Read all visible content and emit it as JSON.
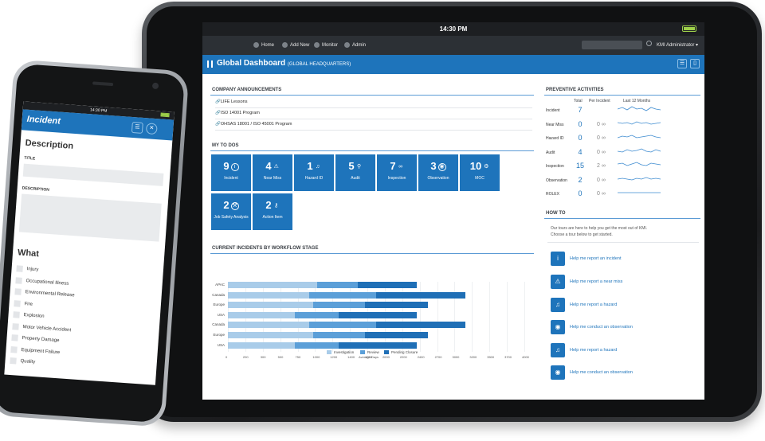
{
  "tablet": {
    "time": "14:30 PM",
    "nav": {
      "home": "Home",
      "add_new": "Add New",
      "monitor": "Monitor",
      "admin": "Admin",
      "user": "KMI Administrator ▾"
    },
    "title": "Global Dashboard",
    "subtitle": "(GLOBAL HEADQUARTERS)",
    "announcements": {
      "heading": "COMPANY ANNOUNCEMENTS",
      "items": [
        "LIFE Lessons",
        "ISO 14001 Program",
        "OHSAS 18001 / ISO 45001 Program"
      ]
    },
    "todos": {
      "heading": "MY TO DOS",
      "tiles": [
        {
          "count": "9",
          "label": "Incident",
          "icon": "info-icon"
        },
        {
          "count": "4",
          "label": "Near Miss",
          "icon": "warning-icon"
        },
        {
          "count": "1",
          "label": "Hazard ID",
          "icon": "bell-icon"
        },
        {
          "count": "5",
          "label": "Audit",
          "icon": "magnify-icon"
        },
        {
          "count": "7",
          "label": "Inspection",
          "icon": "glasses-icon"
        },
        {
          "count": "3",
          "label": "Observation",
          "icon": "eye-icon"
        },
        {
          "count": "10",
          "label": "MOC",
          "icon": "gear-icon"
        },
        {
          "count": "2",
          "label": "Job Safety Analysis",
          "icon": "tool-icon"
        },
        {
          "count": "2",
          "label": "Action Item",
          "icon": "wrench-icon"
        }
      ]
    },
    "workflow": {
      "heading": "CURRENT INCIDENTS BY WORKFLOW STAGE",
      "xlabel": "Average Days",
      "legend": [
        "Investigation",
        "Review",
        "Pending Closure"
      ]
    },
    "preventive": {
      "heading": "PREVENTIVE ACTIVITIES",
      "col_total": "Total",
      "col_per": "Per Incident",
      "col_trend": "Last 12 Months",
      "rows": [
        {
          "label": "Incident",
          "total": "7",
          "per": ""
        },
        {
          "label": "Near Miss",
          "total": "0",
          "per": "0 ∞"
        },
        {
          "label": "Hazard ID",
          "total": "0",
          "per": "0 ∞"
        },
        {
          "label": "Audit",
          "total": "4",
          "per": "0 ∞"
        },
        {
          "label": "Inspection",
          "total": "15",
          "per": "2 ∞"
        },
        {
          "label": "Observation",
          "total": "2",
          "per": "0 ∞"
        },
        {
          "label": "ROLEX",
          "total": "0",
          "per": "0 ∞"
        }
      ]
    },
    "howto": {
      "heading": "HOW TO",
      "intro1": "Our tours are here to help you get the most out of KMI.",
      "intro2": "Choose a tour below to get started.",
      "items": [
        "Help me report an incident",
        "Help me report a near miss",
        "Help me report a hazard",
        "Help me conduct an observation",
        "Help me report a hazard",
        "Help me conduct an observation"
      ]
    }
  },
  "chart_data": {
    "type": "bar",
    "stacked": true,
    "orientation": "horizontal",
    "categories": [
      "APAC",
      "Canada",
      "Europe",
      "USA",
      "Canada",
      "Europe",
      "USA"
    ],
    "series": [
      {
        "name": "Investigation",
        "values": [
          1200,
          1100,
          1150,
          900,
          1100,
          1150,
          900
        ]
      },
      {
        "name": "Review",
        "values": [
          550,
          900,
          700,
          600,
          900,
          700,
          600
        ]
      },
      {
        "name": "Pending Closure",
        "values": [
          800,
          1200,
          850,
          1050,
          1200,
          850,
          1050
        ]
      }
    ],
    "xlabel": "Average Days",
    "xlim": [
      0,
      4000
    ],
    "xticks": [
      "0",
      "200",
      "300",
      "500",
      "750",
      "1000",
      "1200",
      "1400",
      "1700",
      "2000",
      "2200",
      "2400",
      "2700",
      "3000",
      "3200",
      "3500",
      "3700",
      "4000"
    ],
    "colors": {
      "Investigation": "#a9cce9",
      "Review": "#5b9fd8",
      "Pending Closure": "#1f6fb6"
    },
    "legend": "bottom"
  },
  "phone": {
    "time": "14:30 PM",
    "title": "Incident",
    "description_heading": "Description",
    "title_label": "TITLE",
    "description_label": "DESCRIPTION",
    "what_heading": "What",
    "options": [
      "Injury",
      "Occupational Illness",
      "Environmental Release",
      "Fire",
      "Explosion",
      "Motor Vehicle Accident",
      "Property Damage",
      "Equipment Failure",
      "Quality"
    ]
  },
  "colors": {
    "accent": "#1e74bb",
    "dark": "#2c3035"
  }
}
